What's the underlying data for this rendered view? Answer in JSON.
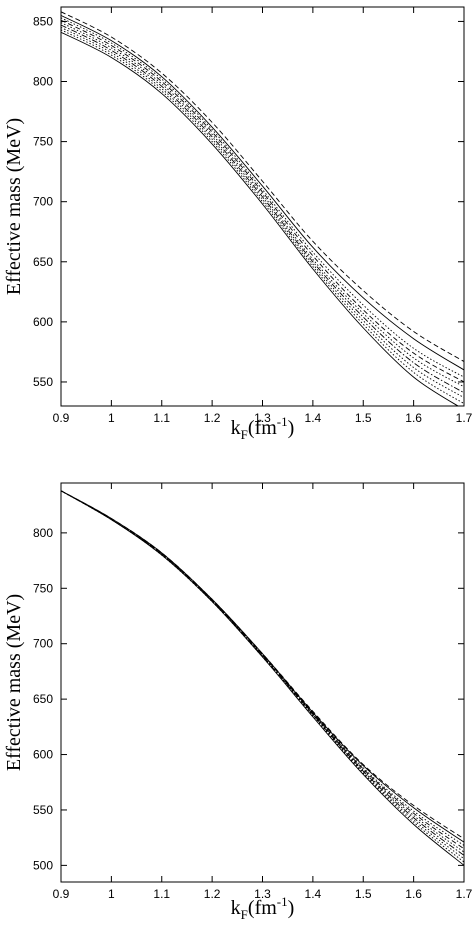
{
  "chart_data": [
    {
      "type": "line",
      "title": "",
      "xlabel": {
        "main": "k",
        "sub": "F",
        "unit": "(fm",
        "sup": "-1",
        "close": ")"
      },
      "ylabel": "Effective mass (MeV)",
      "xlim": [
        0.9,
        1.7
      ],
      "ylim": [
        530,
        862
      ],
      "xticks": [
        "0.9",
        "1",
        "1.1",
        "1.2",
        "1.3",
        "1.4",
        "1.5",
        "1.6",
        "1.7"
      ],
      "yticks": [
        "550",
        "600",
        "650",
        "700",
        "750",
        "800",
        "850"
      ],
      "grid": false,
      "legend": "none",
      "x": [
        0.9,
        1.0,
        1.1,
        1.2,
        1.3,
        1.4,
        1.5,
        1.6,
        1.7
      ],
      "series": [
        {
          "style": "solid",
          "values": [
            841,
            820,
            790,
            748,
            698,
            644,
            595,
            554,
            527
          ]
        },
        {
          "style": "dotted",
          "values": [
            843,
            822,
            792,
            750,
            700,
            646,
            598,
            558,
            532
          ]
        },
        {
          "style": "dotted",
          "values": [
            845,
            824,
            794,
            752,
            702,
            648,
            601,
            562,
            537
          ]
        },
        {
          "style": "dashdot",
          "values": [
            847,
            826,
            796,
            754,
            704,
            650,
            604,
            566,
            541
          ]
        },
        {
          "style": "dotted",
          "values": [
            849,
            828,
            798,
            756,
            706,
            652,
            607,
            570,
            546
          ]
        },
        {
          "style": "dashed",
          "values": [
            851,
            830,
            800,
            758,
            708,
            655,
            610,
            574,
            550
          ]
        },
        {
          "style": "dotted",
          "values": [
            853,
            832,
            802,
            760,
            710,
            658,
            614,
            578,
            554
          ]
        },
        {
          "style": "solid",
          "values": [
            855,
            834,
            804,
            762,
            713,
            662,
            620,
            586,
            560
          ]
        },
        {
          "style": "dashed",
          "values": [
            858,
            837,
            807,
            766,
            717,
            667,
            626,
            592,
            567
          ]
        }
      ]
    },
    {
      "type": "line",
      "title": "",
      "xlabel": {
        "main": "k",
        "sub": "F",
        "unit": "(fm",
        "sup": "-1",
        "close": ")"
      },
      "ylabel": "Effective mass (MeV)",
      "xlim": [
        0.9,
        1.7
      ],
      "ylim": [
        485,
        845
      ],
      "xticks": [
        "0.9",
        "1",
        "1.1",
        "1.2",
        "1.3",
        "1.4",
        "1.5",
        "1.6",
        "1.7"
      ],
      "yticks": [
        "500",
        "550",
        "600",
        "650",
        "700",
        "750",
        "800"
      ],
      "grid": false,
      "legend": "none",
      "x": [
        0.9,
        1.0,
        1.1,
        1.2,
        1.3,
        1.4,
        1.5,
        1.6,
        1.7
      ],
      "series": [
        {
          "style": "solid",
          "values": [
            838,
            812,
            780,
            738,
            688,
            634,
            582,
            537,
            500
          ]
        },
        {
          "style": "dotted",
          "values": [
            838,
            812,
            780,
            738,
            688,
            635,
            583,
            539,
            503
          ]
        },
        {
          "style": "dotted",
          "values": [
            838,
            812,
            780,
            738,
            689,
            636,
            584,
            541,
            506
          ]
        },
        {
          "style": "dashdot",
          "values": [
            838,
            812,
            781,
            739,
            689,
            636,
            585,
            543,
            509
          ]
        },
        {
          "style": "dotted",
          "values": [
            838,
            812,
            781,
            739,
            690,
            637,
            586,
            545,
            512
          ]
        },
        {
          "style": "dashed",
          "values": [
            838,
            812,
            781,
            739,
            690,
            637,
            587,
            547,
            515
          ]
        },
        {
          "style": "dotted",
          "values": [
            838,
            812,
            781,
            740,
            690,
            638,
            588,
            549,
            518
          ]
        },
        {
          "style": "solid",
          "values": [
            838,
            813,
            782,
            740,
            691,
            638,
            590,
            552,
            521
          ]
        },
        {
          "style": "dashed",
          "values": [
            838,
            813,
            782,
            740,
            691,
            639,
            591,
            554,
            524
          ]
        }
      ]
    }
  ]
}
